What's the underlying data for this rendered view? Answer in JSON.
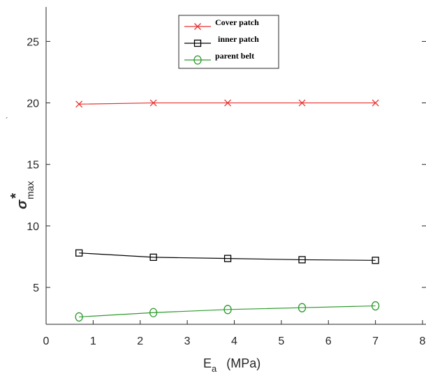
{
  "chart_data": {
    "type": "line",
    "title": "",
    "xlabel": {
      "main": "E",
      "sub": "a",
      "unit": "(MPa)"
    },
    "ylabel": {
      "main": "σ",
      "sup": "*",
      "sub": "max"
    },
    "stray_mark": "´",
    "xlim": [
      0,
      8
    ],
    "ylim": [
      2,
      27.8
    ],
    "xticks": [
      0,
      1,
      2,
      3,
      4,
      5,
      6,
      7,
      8
    ],
    "yticks": [
      5,
      10,
      15,
      20,
      25
    ],
    "grid": false,
    "legend_position": "top-center",
    "series": [
      {
        "name": "Cover patch",
        "color": "#e8312f",
        "marker": "x",
        "x": [
          0.7,
          2.28,
          3.86,
          5.44,
          7.0
        ],
        "y": [
          19.9,
          20.0,
          20.0,
          20.0,
          20.0
        ]
      },
      {
        "name": "inner patch",
        "color": "#000000",
        "marker": "square",
        "x": [
          0.7,
          2.28,
          3.86,
          5.44,
          7.0
        ],
        "y": [
          7.8,
          7.45,
          7.35,
          7.25,
          7.2
        ]
      },
      {
        "name": "parent belt",
        "color": "#2e9a2e",
        "marker": "circle",
        "x": [
          0.7,
          2.28,
          3.86,
          5.44,
          7.0
        ],
        "y": [
          2.6,
          2.95,
          3.2,
          3.35,
          3.5
        ]
      }
    ]
  }
}
